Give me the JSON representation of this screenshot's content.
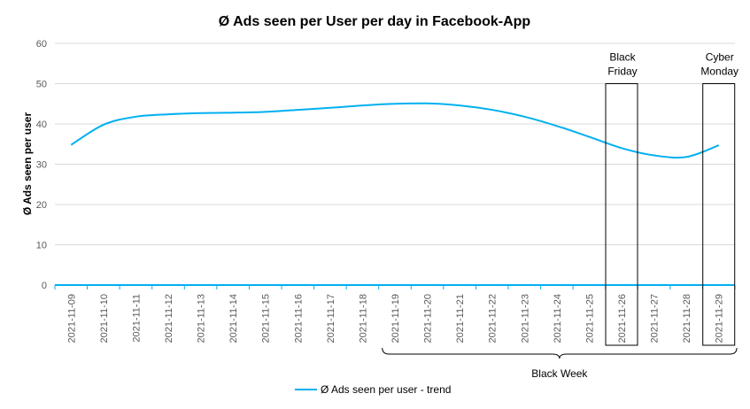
{
  "chart_data": {
    "type": "line",
    "title": "Ø Ads seen per User per day in Facebook-App",
    "xlabel": "",
    "ylabel": "Ø Ads seen per user",
    "ylim": [
      0,
      60
    ],
    "yticks": [
      0,
      10,
      20,
      30,
      40,
      50,
      60
    ],
    "grid": true,
    "legend_position": "bottom",
    "x": [
      "2021-11-09",
      "2021-11-10",
      "2021-11-11",
      "2021-11-12",
      "2021-11-13",
      "2021-11-14",
      "2021-11-15",
      "2021-11-16",
      "2021-11-17",
      "2021-11-18",
      "2021-11-19",
      "2021-11-20",
      "2021-11-21",
      "2021-11-22",
      "2021-11-23",
      "2021-11-24",
      "2021-11-25",
      "2021-11-26",
      "2021-11-27",
      "2021-11-28",
      "2021-11-29"
    ],
    "series": [
      {
        "name": "Ø Ads seen per user - trend",
        "color": "#00b0f0",
        "values": [
          34.8,
          39.8,
          41.8,
          42.4,
          42.7,
          42.8,
          43.0,
          43.5,
          44.0,
          44.6,
          45.0,
          45.1,
          44.6,
          43.5,
          41.8,
          39.5,
          36.8,
          34.0,
          32.2,
          31.8,
          34.7
        ]
      }
    ],
    "annotations": {
      "black_friday": {
        "lines": [
          "Black",
          "Friday"
        ],
        "x": "2021-11-26"
      },
      "cyber_monday": {
        "lines": [
          "Cyber",
          "Monday"
        ],
        "x": "2021-11-29"
      },
      "black_week": {
        "label": "Black Week",
        "from": "2021-11-19",
        "to": "2021-11-29"
      }
    }
  }
}
